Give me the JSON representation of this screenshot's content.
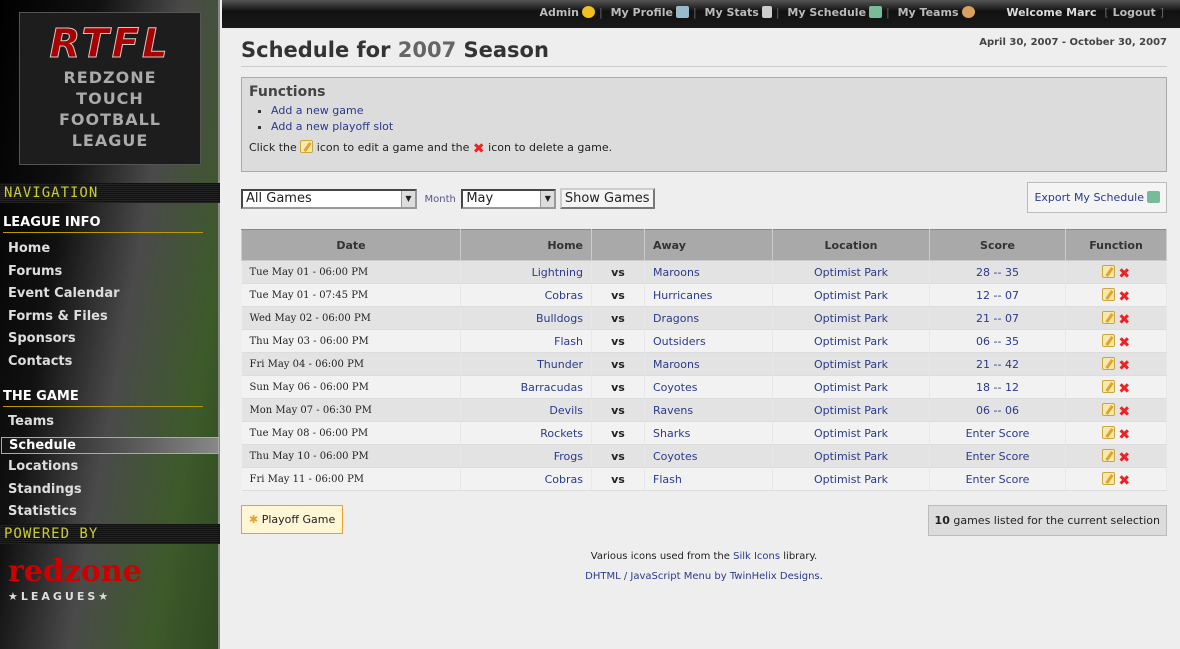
{
  "sidebar": {
    "logo": {
      "title": "RTFL",
      "lines": [
        "REDZONE",
        "TOUCH",
        "FOOTBALL",
        "LEAGUE"
      ]
    },
    "navigation_label": "NAVIGATION",
    "league_info": {
      "heading": "LEAGUE INFO",
      "items": [
        "Home",
        "Forums",
        "Event Calendar",
        "Forms & Files",
        "Sponsors",
        "Contacts"
      ]
    },
    "the_game": {
      "heading": "THE GAME",
      "items": [
        "Teams",
        "Schedule",
        "Locations",
        "Standings",
        "Statistics"
      ],
      "active": "Schedule"
    },
    "powered_by": "POWERED BY",
    "brand": "redzone",
    "brand_sub": "★LEAGUES★"
  },
  "topbar": {
    "links": [
      "Admin",
      "My Profile",
      "My Stats",
      "My Schedule",
      "My Teams"
    ],
    "welcome": "Welcome Marc",
    "logout": "Logout"
  },
  "header": {
    "title_pre": "Schedule for",
    "year": "2007",
    "title_post": "Season",
    "range": "April 30, 2007 - October 30, 2007"
  },
  "functions": {
    "heading": "Functions",
    "links": [
      "Add a new game",
      "Add a new playoff slot"
    ],
    "help_1": "Click the",
    "help_2": "icon to edit a game and the",
    "help_3": "icon to delete a game."
  },
  "filters": {
    "games": "All Games",
    "month_label": "Month",
    "month": "May",
    "show_button": "Show Games",
    "export": "Export My Schedule"
  },
  "table": {
    "headers": [
      "Date",
      "Home",
      "",
      "Away",
      "Location",
      "Score",
      "Function"
    ],
    "rows": [
      [
        "Tue May 01 - 06:00 PM",
        "Lightning",
        "vs",
        "Maroons",
        "Optimist Park",
        "28 -- 35"
      ],
      [
        "Tue May 01 - 07:45 PM",
        "Cobras",
        "vs",
        "Hurricanes",
        "Optimist Park",
        "12 -- 07"
      ],
      [
        "Wed May 02 - 06:00 PM",
        "Bulldogs",
        "vs",
        "Dragons",
        "Optimist Park",
        "21 -- 07"
      ],
      [
        "Thu May 03 - 06:00 PM",
        "Flash",
        "vs",
        "Outsiders",
        "Optimist Park",
        "06 -- 35"
      ],
      [
        "Fri May 04 - 06:00 PM",
        "Thunder",
        "vs",
        "Maroons",
        "Optimist Park",
        "21 -- 42"
      ],
      [
        "Sun May 06 - 06:00 PM",
        "Barracudas",
        "vs",
        "Coyotes",
        "Optimist Park",
        "18 -- 12"
      ],
      [
        "Mon May 07 - 06:30 PM",
        "Devils",
        "vs",
        "Ravens",
        "Optimist Park",
        "06 -- 06"
      ],
      [
        "Tue May 08 - 06:00 PM",
        "Rockets",
        "vs",
        "Sharks",
        "Optimist Park",
        "Enter Score"
      ],
      [
        "Thu May 10 - 06:00 PM",
        "Frogs",
        "vs",
        "Coyotes",
        "Optimist Park",
        "Enter Score"
      ],
      [
        "Fri May 11 - 06:00 PM",
        "Cobras",
        "vs",
        "Flash",
        "Optimist Park",
        "Enter Score"
      ]
    ]
  },
  "bottom": {
    "playoff": "Playoff Game",
    "count": "10",
    "count_text": "games listed for the current selection"
  },
  "footer": {
    "l1a": "Various icons used from the",
    "l1link": "Silk Icons",
    "l1b": "library.",
    "l2link": "DHTML / JavaScript Menu",
    "l2a": "by",
    "l2link2": "TwinHelix Designs",
    "l2b": "."
  }
}
